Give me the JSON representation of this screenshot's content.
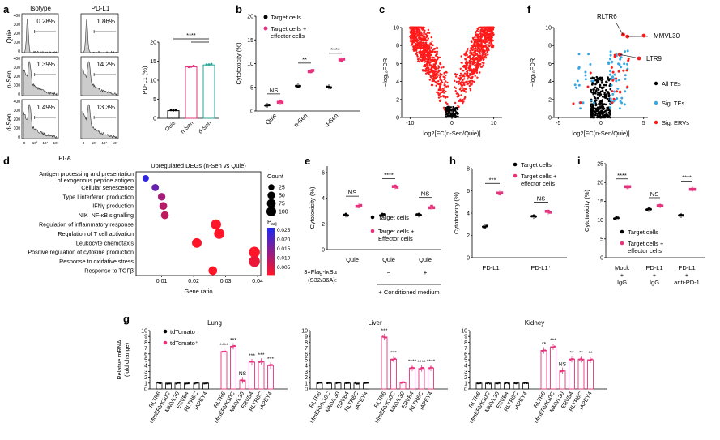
{
  "colors": {
    "pink": "#e6337d",
    "teal": "#2aa198",
    "red": "#ff1a1a",
    "blue": "#3ba8e0",
    "black": "#000000"
  },
  "panel_a": {
    "letter": "a",
    "col_titles": [
      "Isotype",
      "PD-L1"
    ],
    "row_labels": [
      "Quie",
      "n-Sen",
      "d-Sen"
    ],
    "x_label": "PI-A",
    "percent_isotype": [
      "0.28%",
      "1.39%",
      "1.49%"
    ],
    "percent_pdl1": [
      "1.86%",
      "14.2%",
      "13.3%"
    ],
    "bar_ylabel": "PD-L1 (%)",
    "bar_categories": [
      "Quie",
      "n-Sen",
      "d-Sen"
    ],
    "bar_values": [
      2,
      13.5,
      14
    ],
    "bar_ticks": [
      "0",
      "5",
      "10",
      "15",
      "20"
    ],
    "sig": "****"
  },
  "panel_b": {
    "letter": "b",
    "ylabel": "Cytotoxicity (%)",
    "ticks": [
      "0",
      "5",
      "10",
      "15",
      "20"
    ],
    "legend": [
      "Target cells",
      "Target cells +\neffector cells"
    ],
    "categories": [
      "Quie",
      "n-Sen",
      "d-Sen"
    ],
    "target": [
      1.2,
      5.3,
      5.1
    ],
    "effector": [
      1.9,
      8.4,
      10.8
    ],
    "sig": [
      "NS",
      "**",
      "****"
    ]
  },
  "panel_c": {
    "letter": "c",
    "ylabel": "-log10FDR",
    "xlabel": "log2[FC(n-Sen/Quie)]",
    "yticks": [
      "0",
      "2",
      "4",
      "6",
      "8",
      "10"
    ],
    "xticks": [
      "-10",
      "0",
      "10"
    ]
  },
  "panel_f": {
    "letter": "f",
    "ylabel": "-log10FDR",
    "xlabel": "log2[FC(n-Sen/Quie)]",
    "yticks": [
      "0",
      "2",
      "4",
      "6",
      "8",
      "10"
    ],
    "xticks": [
      "-5",
      "0",
      "5"
    ],
    "annot": [
      "RLTR6",
      "MMVL30",
      "LTR9"
    ],
    "legend": [
      "All TEs",
      "Sig. TEs",
      "Sig. ERVs"
    ]
  },
  "panel_d": {
    "letter": "d",
    "title": "Upregulated DEGs (n-Sen vs Quie)",
    "terms": [
      "Antigen processing and presentation\nof exogenous peptide antigen",
      "Cellular senescence",
      "Type I interferon production",
      "IFNγ production",
      "NIK–NF-κB signalling",
      "Regulation of inflammatory response",
      "Regulation of T cell activation",
      "Leukocyte chemotaxis",
      "Positive regulation of cytokine production",
      "Response to oxidative stress",
      "Response to TGFβ"
    ],
    "gene_ratio": [
      0.005,
      0.008,
      0.01,
      0.0105,
      0.011,
      0.027,
      0.028,
      0.021,
      0.039,
      0.039,
      0.026
    ],
    "counts": [
      25,
      35,
      40,
      45,
      45,
      90,
      95,
      80,
      110,
      110,
      60
    ],
    "padj": [
      0.024,
      0.018,
      0.011,
      0.009,
      0.008,
      0.001,
      0.001,
      0.001,
      0.001,
      0.003,
      0.001
    ],
    "xlabel": "Gene ratio",
    "xticks": [
      "0.01",
      "0.02",
      "0.03",
      "0.04"
    ],
    "count_title": "Count",
    "count_levels": [
      "25",
      "50",
      "75",
      "100"
    ],
    "padj_title": "Padj",
    "padj_ticks": [
      "0.005",
      "0.010",
      "0.015",
      "0.020",
      "0.025"
    ]
  },
  "panel_e": {
    "letter": "e",
    "ylabel": "Cytotoxicity (%)",
    "ticks": [
      "0",
      "2",
      "4",
      "6"
    ],
    "legend": [
      "Target cells",
      "Target cells +\nEffector cells"
    ],
    "categories": [
      "Quie",
      "Quie",
      "Quie"
    ],
    "target": [
      2.7,
      2.7,
      2.7
    ],
    "effector": [
      3.4,
      4.9,
      3.3
    ],
    "sig": [
      "NS",
      "****",
      "NS"
    ],
    "row1_label": "3×Flag-IκBα\n(S32/36A):",
    "row1_values": [
      "",
      "−",
      "+"
    ],
    "row2_label": "+ Conditioned medium"
  },
  "panel_h": {
    "letter": "h",
    "ylabel": "Cytotoxicity (%)",
    "ticks": [
      "0",
      "2",
      "4",
      "6",
      "8"
    ],
    "legend": [
      "Target cells",
      "Target cells +\neffector cells"
    ],
    "categories": [
      "PD-L1⁻",
      "PD-L1⁺"
    ],
    "target": [
      2.8,
      3.7
    ],
    "effector": [
      5.8,
      4.1
    ],
    "sig": [
      "***",
      "NS"
    ]
  },
  "panel_i": {
    "letter": "i",
    "ylabel": "Cytotoxicity (%)",
    "ticks": [
      "0",
      "5",
      "10",
      "15",
      "20",
      "25"
    ],
    "legend": [
      "Target cells",
      "Target cells +\neffector cells"
    ],
    "categories": [
      "Mock\n+\nIgG",
      "PD-L1\n+\nIgG",
      "PD-L1\n+\nanti-PD-1"
    ],
    "target": [
      10.5,
      12.8,
      11.2
    ],
    "effector": [
      18.8,
      13.8,
      18.2
    ],
    "sig": [
      "****",
      "NS",
      "****"
    ]
  },
  "panel_g": {
    "letter": "g",
    "ylabel": "Relative mRNA\n(fold change)",
    "ticks": [
      "0",
      "1",
      "2",
      "3",
      "4",
      "5",
      "6",
      "7",
      "8",
      "9",
      "10"
    ],
    "legend": [
      "tdTomato⁻",
      "tdTomato⁺"
    ],
    "genes": [
      "RLTR6",
      "MmERVK10C",
      "MMVL30",
      "ERVB4",
      "RLTR6C",
      "IAPEY4"
    ],
    "groups": [
      {
        "title": "Lung",
        "neg": [
          1,
          1,
          1,
          1,
          1,
          1
        ],
        "pos": [
          6.4,
          7.3,
          1.5,
          4.6,
          4.7,
          4.0
        ],
        "sig": [
          "****",
          "***",
          "NS",
          "***",
          "***",
          "***"
        ]
      },
      {
        "title": "Liver",
        "neg": [
          1,
          1,
          1,
          1,
          1,
          1
        ],
        "pos": [
          8.9,
          5.1,
          1.1,
          3.6,
          3.5,
          3.6
        ],
        "sig": [
          "***",
          "***",
          "",
          "****",
          "****",
          "****"
        ]
      },
      {
        "title": "Kidney",
        "neg": [
          1,
          1,
          1,
          1,
          1,
          1
        ],
        "pos": [
          6.6,
          7.2,
          3.1,
          5.1,
          5.1,
          5.0
        ],
        "sig": [
          "**",
          "***",
          "NS",
          "**",
          "**",
          "**"
        ]
      }
    ]
  }
}
